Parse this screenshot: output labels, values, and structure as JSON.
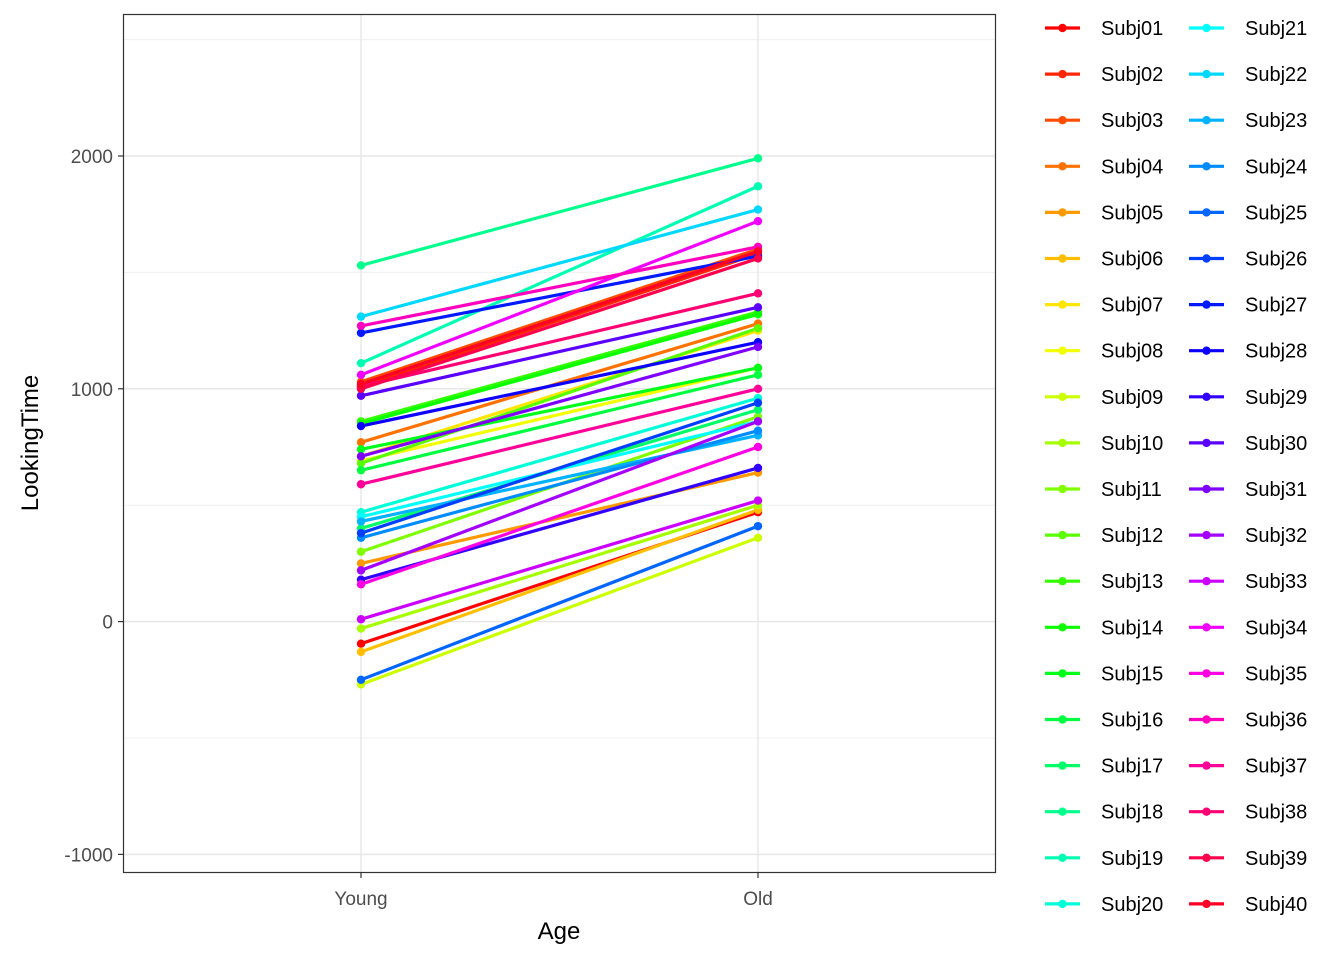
{
  "chart_data": {
    "type": "line",
    "xlabel": "Age",
    "ylabel": "LookingTime",
    "categories": [
      "Young",
      "Old"
    ],
    "ylim": [
      -1080,
      2610
    ],
    "y_ticks": [
      -1000,
      0,
      1000,
      2000
    ],
    "y_tick_labels": [
      "-1000",
      "0",
      "1000",
      "2000"
    ],
    "grid": true,
    "legend_position": "right",
    "series": [
      {
        "name": "Subj01",
        "color": "#FF0000",
        "values": [
          -95,
          470
        ]
      },
      {
        "name": "Subj02",
        "color": "#FF2600",
        "values": [
          1010,
          1580
        ]
      },
      {
        "name": "Subj03",
        "color": "#FF4C00",
        "values": [
          1030,
          1600
        ]
      },
      {
        "name": "Subj04",
        "color": "#FF7200",
        "values": [
          770,
          1280
        ]
      },
      {
        "name": "Subj05",
        "color": "#FF9900",
        "values": [
          250,
          640
        ]
      },
      {
        "name": "Subj06",
        "color": "#FFBF00",
        "values": [
          -130,
          480
        ]
      },
      {
        "name": "Subj07",
        "color": "#FFE500",
        "values": [
          710,
          1250
        ]
      },
      {
        "name": "Subj08",
        "color": "#F2FF00",
        "values": [
          690,
          1090
        ]
      },
      {
        "name": "Subj09",
        "color": "#CCFF00",
        "values": [
          -270,
          360
        ]
      },
      {
        "name": "Subj10",
        "color": "#A5FF00",
        "values": [
          -30,
          500
        ]
      },
      {
        "name": "Subj11",
        "color": "#7FFF00",
        "values": [
          300,
          880
        ]
      },
      {
        "name": "Subj12",
        "color": "#59FF00",
        "values": [
          680,
          1260
        ]
      },
      {
        "name": "Subj13",
        "color": "#33FF00",
        "values": [
          860,
          1330
        ]
      },
      {
        "name": "Subj14",
        "color": "#0CFF00",
        "values": [
          850,
          1320
        ]
      },
      {
        "name": "Subj15",
        "color": "#00FF19",
        "values": [
          740,
          1090
        ]
      },
      {
        "name": "Subj16",
        "color": "#00FF3F",
        "values": [
          650,
          1060
        ]
      },
      {
        "name": "Subj17",
        "color": "#00FF66",
        "values": [
          400,
          910
        ]
      },
      {
        "name": "Subj18",
        "color": "#00FF8C",
        "values": [
          1530,
          1990
        ]
      },
      {
        "name": "Subj19",
        "color": "#00FFB2",
        "values": [
          1110,
          1870
        ]
      },
      {
        "name": "Subj20",
        "color": "#00FFD8",
        "values": [
          470,
          960
        ]
      },
      {
        "name": "Subj21",
        "color": "#00FFFF",
        "values": [
          450,
          860
        ]
      },
      {
        "name": "Subj22",
        "color": "#00D8FF",
        "values": [
          1310,
          1770
        ]
      },
      {
        "name": "Subj23",
        "color": "#00B2FF",
        "values": [
          430,
          800
        ]
      },
      {
        "name": "Subj24",
        "color": "#008CFF",
        "values": [
          360,
          820
        ]
      },
      {
        "name": "Subj25",
        "color": "#0066FF",
        "values": [
          -250,
          410
        ]
      },
      {
        "name": "Subj26",
        "color": "#003FFF",
        "values": [
          380,
          940
        ]
      },
      {
        "name": "Subj27",
        "color": "#0019FF",
        "values": [
          1240,
          1570
        ]
      },
      {
        "name": "Subj28",
        "color": "#0C00FF",
        "values": [
          840,
          1200
        ]
      },
      {
        "name": "Subj29",
        "color": "#3200FF",
        "values": [
          180,
          660
        ]
      },
      {
        "name": "Subj30",
        "color": "#5900FF",
        "values": [
          970,
          1350
        ]
      },
      {
        "name": "Subj31",
        "color": "#7F00FF",
        "values": [
          710,
          1180
        ]
      },
      {
        "name": "Subj32",
        "color": "#A500FF",
        "values": [
          220,
          860
        ]
      },
      {
        "name": "Subj33",
        "color": "#CC00FF",
        "values": [
          10,
          520
        ]
      },
      {
        "name": "Subj34",
        "color": "#F200FF",
        "values": [
          1060,
          1720
        ]
      },
      {
        "name": "Subj35",
        "color": "#FF00E5",
        "values": [
          160,
          750
        ]
      },
      {
        "name": "Subj36",
        "color": "#FF00BF",
        "values": [
          1270,
          1610
        ]
      },
      {
        "name": "Subj37",
        "color": "#FF0099",
        "values": [
          590,
          1000
        ]
      },
      {
        "name": "Subj38",
        "color": "#FF0072",
        "values": [
          1010,
          1410
        ]
      },
      {
        "name": "Subj39",
        "color": "#FF004C",
        "values": [
          1000,
          1560
        ]
      },
      {
        "name": "Subj40",
        "color": "#FF0026",
        "values": [
          1020,
          1590
        ]
      }
    ]
  }
}
